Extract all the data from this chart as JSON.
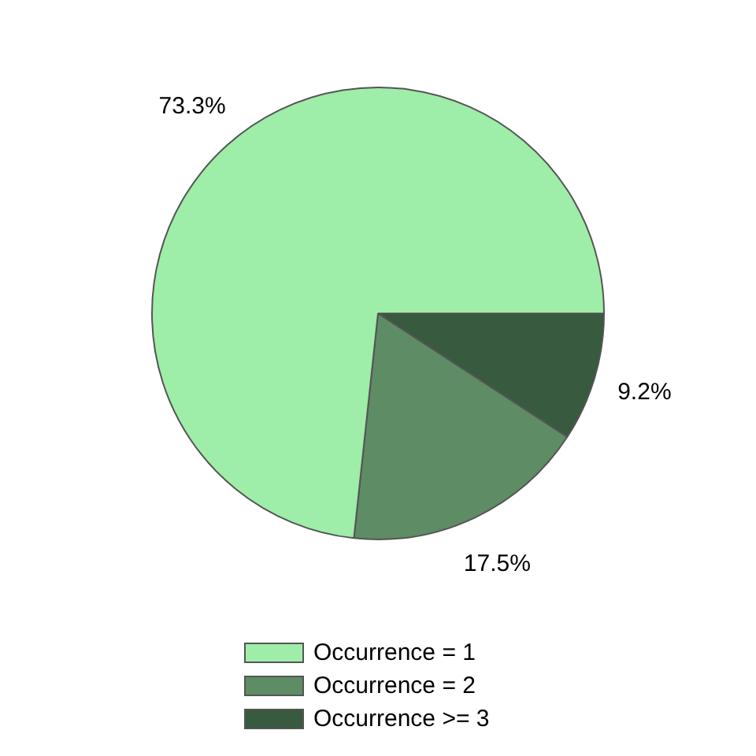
{
  "chart_data": {
    "type": "pie",
    "categories": [
      "Occurrence = 1",
      "Occurrence = 2",
      "Occurrence >= 3"
    ],
    "values": [
      73.3,
      17.5,
      9.2
    ],
    "value_labels": [
      "73.3%",
      "17.5%",
      "9.2%"
    ],
    "colors": [
      "#9eeda8",
      "#5e8c64",
      "#385a3e"
    ],
    "legend": "bottom"
  }
}
